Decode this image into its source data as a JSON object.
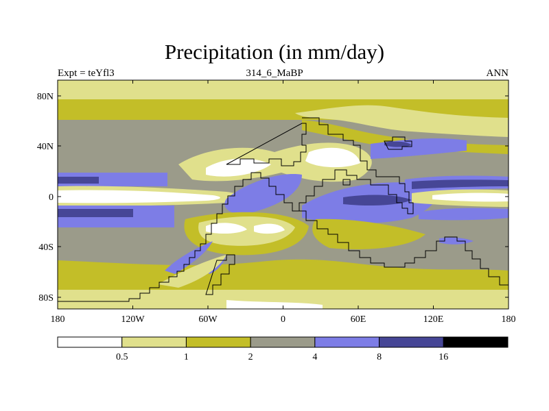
{
  "title": "Precipitation (in mm/day)",
  "subtitle": {
    "left": "Expt = teYfl3",
    "center": "314_6_MaBP",
    "right": "ANN"
  },
  "axes": {
    "y_ticks": [
      "80N",
      "40N",
      "0",
      "40S",
      "80S"
    ],
    "x_ticks": [
      "180",
      "120W",
      "60W",
      "0",
      "60E",
      "120E",
      "180"
    ]
  },
  "colorbar": {
    "labels": [
      "0.5",
      "1",
      "2",
      "4",
      "8",
      "16"
    ],
    "colors": [
      "#ffffff",
      "#e0e08c",
      "#c3be28",
      "#9b9b8a",
      "#7d7de6",
      "#464696",
      "#000000"
    ]
  },
  "palette": {
    "lt": "#e0e08c",
    "ol": "#c3be28",
    "gr": "#9b9b8a",
    "bl": "#7d7de6",
    "db": "#464696",
    "wh": "#ffffff"
  }
}
